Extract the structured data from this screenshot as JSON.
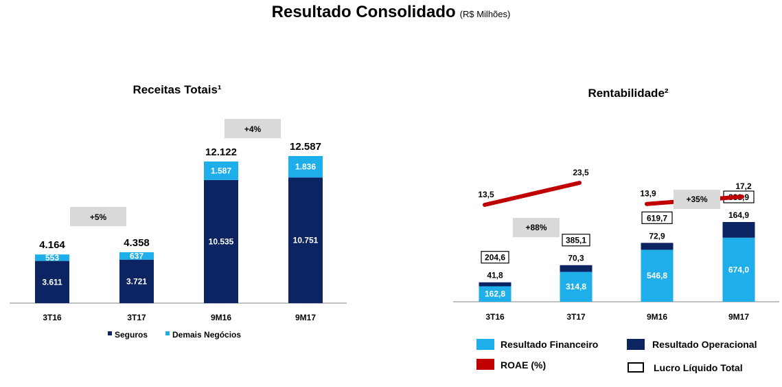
{
  "page": {
    "title": "Resultado Consolidado",
    "subtitle": "(R$ Milhões)"
  },
  "colors": {
    "dark": "#0c2461",
    "light": "#1eaeea",
    "red": "#c00000",
    "badge": "#d9d9d9",
    "axis": "#808080"
  },
  "chart_data": [
    {
      "type": "bar",
      "title": "Receitas Totais¹",
      "categories": [
        "3T16",
        "3T17",
        "9M16",
        "9M17"
      ],
      "series": [
        {
          "name": "Seguros",
          "values": [
            3611,
            3721,
            10535,
            10751
          ],
          "labels": [
            "3.611",
            "3.721",
            "10.535",
            "10.751"
          ]
        },
        {
          "name": "Demais Negócios",
          "values": [
            553,
            637,
            1587,
            1836
          ],
          "labels": [
            "553",
            "637",
            "1.587",
            "1.836"
          ]
        }
      ],
      "totals": [
        4164,
        4358,
        12122,
        12587
      ],
      "total_labels": [
        "4.164",
        "4.358",
        "12.122",
        "12.587"
      ],
      "growth": [
        {
          "label": "+5%"
        },
        {
          "label": "+4%"
        }
      ],
      "ylim": [
        0,
        12587
      ],
      "legend": "bottom"
    },
    {
      "type": "bar",
      "title": "Rentabilidade²",
      "categories": [
        "3T16",
        "3T17",
        "9M16",
        "9M17"
      ],
      "series": [
        {
          "name": "Resultado Financeiro",
          "values": [
            162.8,
            314.8,
            546.8,
            674.0
          ],
          "labels": [
            "162,8",
            "314,8",
            "546,8",
            "674,0"
          ]
        },
        {
          "name": "Resultado Operacional",
          "values": [
            41.8,
            70.3,
            72.9,
            164.9
          ],
          "labels": [
            "41,8",
            "70,3",
            "72,9",
            "164,9"
          ]
        }
      ],
      "lucro_liquido_total": {
        "name": "Lucro Líquido Total",
        "values": [
          204.6,
          385.1,
          619.7,
          838.9
        ],
        "labels": [
          "204,6",
          "385,1",
          "619,7",
          "838,9"
        ]
      },
      "roae": {
        "name": "ROAE (%)",
        "values": [
          13.5,
          23.5,
          13.9,
          17.2
        ],
        "labels": [
          "13,5",
          "23,5",
          "13,9",
          "17,2"
        ]
      },
      "growth": [
        {
          "label": "+88%"
        },
        {
          "label": "+35%"
        }
      ],
      "legend": "bottom"
    }
  ]
}
